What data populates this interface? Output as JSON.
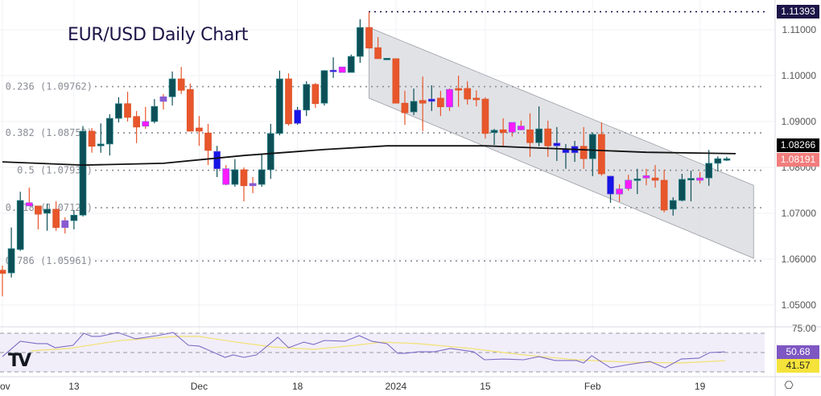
{
  "title": "EUR/USD Daily Chart",
  "chart_data": {
    "type": "candlestick",
    "title": "EUR/USD Daily Chart",
    "ylim": [
      1.0425,
      1.1165
    ],
    "price_ticks": [
      "1.11000",
      "1.10000",
      "1.09000",
      "1.08000",
      "1.07000",
      "1.06000",
      "1.05000"
    ],
    "price_tick_values": [
      1.11,
      1.1,
      1.09,
      1.08,
      1.07,
      1.06,
      1.05
    ],
    "time_labels": [
      {
        "index": 0,
        "label": "ov"
      },
      {
        "index": 8,
        "label": "13"
      },
      {
        "index": 22,
        "label": "Dec"
      },
      {
        "index": 33,
        "label": "18"
      },
      {
        "index": 44,
        "label": "2024"
      },
      {
        "index": 54,
        "label": "15"
      },
      {
        "index": 66,
        "label": "Feb"
      },
      {
        "index": 78,
        "label": "19"
      }
    ],
    "colors": {
      "up": "#0d4f57",
      "down": "#e8562c",
      "b": "#1515e6",
      "p": "#ff1aff",
      "v": "#8a5bd0",
      "sma": "#111111",
      "rsi": "#7e6bc4",
      "rsi_ma": "#f2e27a",
      "channel": "#d9dadf"
    },
    "candles": [
      [
        1.0576,
        1.0586,
        1.0519,
        1.0569,
        "d"
      ],
      [
        1.057,
        1.0669,
        1.056,
        1.0623,
        "u"
      ],
      [
        1.0621,
        1.0747,
        1.0618,
        1.0728,
        "u"
      ],
      [
        1.0723,
        1.0756,
        1.0716,
        1.0716,
        "p"
      ],
      [
        1.0716,
        1.0716,
        1.0665,
        1.0698,
        "d"
      ],
      [
        1.07,
        1.0721,
        1.0662,
        1.0709,
        "u"
      ],
      [
        1.0709,
        1.0726,
        1.0662,
        1.0669,
        "d"
      ],
      [
        1.0684,
        1.0691,
        1.0656,
        1.0669,
        "v"
      ],
      [
        1.0684,
        1.0707,
        1.0665,
        1.0696,
        "u"
      ],
      [
        1.0696,
        1.089,
        1.0693,
        1.0879,
        "u"
      ],
      [
        1.0879,
        1.0886,
        1.0832,
        1.0846,
        "d"
      ],
      [
        1.0847,
        1.0896,
        1.0832,
        1.0851,
        "u"
      ],
      [
        1.0851,
        1.0916,
        1.0826,
        1.0907,
        "u"
      ],
      [
        1.0907,
        1.0953,
        1.0898,
        1.0939,
        "u"
      ],
      [
        1.0939,
        1.0965,
        1.09,
        1.0909,
        "d"
      ],
      [
        1.0911,
        1.0923,
        1.0853,
        1.0888,
        "d"
      ],
      [
        1.09,
        1.0932,
        1.0884,
        1.089,
        "p"
      ],
      [
        1.09,
        1.0949,
        1.0896,
        1.0933,
        "u"
      ],
      [
        1.0954,
        1.096,
        1.0926,
        1.0944,
        "v"
      ],
      [
        1.0954,
        1.1009,
        1.0935,
        1.0993,
        "u"
      ],
      [
        1.0993,
        1.1019,
        1.096,
        1.0968,
        "d"
      ],
      [
        1.097,
        1.0983,
        1.0879,
        1.0879,
        "d"
      ],
      [
        1.0886,
        1.0912,
        1.0847,
        1.0879,
        "d"
      ],
      [
        1.0875,
        1.0895,
        1.0805,
        1.0837,
        "d"
      ],
      [
        1.0835,
        1.0847,
        1.0779,
        1.0797,
        "b"
      ],
      [
        1.0797,
        1.0805,
        1.0761,
        1.0763,
        "p"
      ],
      [
        1.0763,
        1.0818,
        1.0758,
        1.0795,
        "u"
      ],
      [
        1.0795,
        1.08,
        1.0726,
        1.076,
        "d"
      ],
      [
        1.0765,
        1.0779,
        1.0744,
        1.076,
        "v"
      ],
      [
        1.0763,
        1.0828,
        1.0758,
        1.0795,
        "u"
      ],
      [
        1.0795,
        1.0895,
        1.0775,
        1.0874,
        "u"
      ],
      [
        1.0874,
        1.1011,
        1.087,
        1.0993,
        "u"
      ],
      [
        1.0993,
        1.1005,
        1.0891,
        1.0895,
        "d"
      ],
      [
        1.0925,
        1.0932,
        1.0893,
        1.0896,
        "b"
      ],
      [
        1.0925,
        1.0988,
        1.0912,
        1.0981,
        "u"
      ],
      [
        1.0981,
        1.0984,
        1.093,
        1.0939,
        "d"
      ],
      [
        1.094,
        1.1012,
        1.0935,
        1.1011,
        "u"
      ],
      [
        1.1012,
        1.104,
        1.0995,
        1.1011,
        "b"
      ],
      [
        1.1019,
        1.1019,
        1.1007,
        1.1007,
        "p"
      ],
      [
        1.1007,
        1.1046,
        1.1007,
        1.1042,
        "u"
      ],
      [
        1.1042,
        1.1123,
        1.1028,
        1.1105,
        "u"
      ],
      [
        1.1105,
        1.1139,
        1.106,
        1.106,
        "d"
      ],
      [
        1.1061,
        1.1084,
        1.1037,
        1.1037,
        "d"
      ],
      [
        1.1037,
        1.1038,
        1.1037,
        1.1038,
        "u"
      ],
      [
        1.1037,
        1.1037,
        1.094,
        1.094,
        "d"
      ],
      [
        1.094,
        1.0967,
        1.0893,
        1.0919,
        "d"
      ],
      [
        1.0921,
        1.0972,
        1.0914,
        1.0944,
        "u"
      ],
      [
        1.0946,
        1.0998,
        1.0879,
        1.094,
        "d"
      ],
      [
        1.0949,
        1.0979,
        1.0923,
        1.0944,
        "b"
      ],
      [
        1.0951,
        1.0967,
        1.0912,
        1.0932,
        "d"
      ],
      [
        1.097,
        1.0972,
        1.0923,
        1.0932,
        "p"
      ],
      [
        1.0972,
        1.1,
        1.0932,
        1.097,
        "d"
      ],
      [
        1.0972,
        1.0988,
        1.0937,
        1.0949,
        "d"
      ],
      [
        1.0951,
        1.0968,
        1.0933,
        1.0949,
        "d"
      ],
      [
        1.0949,
        1.0953,
        1.0863,
        1.0874,
        "d"
      ],
      [
        1.0876,
        1.0884,
        1.0849,
        1.0881,
        "u"
      ],
      [
        1.0882,
        1.0907,
        1.0847,
        1.0876,
        "d"
      ],
      [
        1.0898,
        1.0898,
        1.0867,
        1.0877,
        "p"
      ],
      [
        1.089,
        1.0902,
        1.0881,
        1.0882,
        "p"
      ],
      [
        1.0882,
        1.0918,
        1.0823,
        1.0854,
        "d"
      ],
      [
        1.0854,
        1.0933,
        1.0846,
        1.0884,
        "u"
      ],
      [
        1.0884,
        1.0902,
        1.0823,
        1.0847,
        "d"
      ],
      [
        1.0853,
        1.0888,
        1.0814,
        1.0847,
        "b"
      ],
      [
        1.0839,
        1.0851,
        1.0797,
        1.0832,
        "b"
      ],
      [
        1.0846,
        1.0858,
        1.0812,
        1.0832,
        "b"
      ],
      [
        1.0846,
        1.0888,
        1.0797,
        1.0819,
        "d"
      ],
      [
        1.0819,
        1.0876,
        1.0781,
        1.0872,
        "u"
      ],
      [
        1.0872,
        1.0898,
        1.0782,
        1.0786,
        "d"
      ],
      [
        1.0781,
        1.0782,
        1.0723,
        1.0742,
        "b"
      ],
      [
        1.0753,
        1.0763,
        1.0725,
        1.0742,
        "p"
      ],
      [
        1.0772,
        1.0784,
        1.0749,
        1.0754,
        "p"
      ],
      [
        1.0772,
        1.0797,
        1.0742,
        1.0775,
        "u"
      ],
      [
        1.0782,
        1.0797,
        1.0761,
        1.0777,
        "p"
      ],
      [
        1.0777,
        1.0805,
        1.0756,
        1.0772,
        "d"
      ],
      [
        1.0772,
        1.0795,
        1.0702,
        1.0707,
        "d"
      ],
      [
        1.0709,
        1.0735,
        1.0695,
        1.0728,
        "u"
      ],
      [
        1.0728,
        1.0786,
        1.0726,
        1.0774,
        "u"
      ],
      [
        1.0775,
        1.0793,
        1.0726,
        1.0776,
        "u"
      ],
      [
        1.0777,
        1.079,
        1.0765,
        1.0772,
        "p"
      ],
      [
        1.0777,
        1.0838,
        1.076,
        1.0809,
        "u"
      ],
      [
        1.0809,
        1.0824,
        1.0791,
        1.0819,
        "u"
      ],
      [
        1.0819,
        1.0823,
        1.0814,
        1.0819,
        "u"
      ]
    ],
    "sma_200": [
      [
        0,
        1.0812
      ],
      [
        9,
        1.0805
      ],
      [
        18,
        1.0809
      ],
      [
        27,
        1.0826
      ],
      [
        36,
        1.0839
      ],
      [
        43,
        1.0847
      ],
      [
        54,
        1.0847
      ],
      [
        63,
        1.084
      ],
      [
        72,
        1.0833
      ],
      [
        82,
        1.083
      ]
    ],
    "channel": {
      "start_index": 41,
      "end_index": 84,
      "upper": [
        1.1105,
        1.0761
      ],
      "lower": [
        1.0951,
        1.0602
      ]
    },
    "fib_levels": [
      {
        "label": "0.236 (1.09762)",
        "value": 1.09762
      },
      {
        "label": "0.382 (1.08753)",
        "value": 1.08753
      },
      {
        "label": "0.5 (1.07938)",
        "value": 1.07938
      },
      {
        "label": "0.618 (1.07122)",
        "value": 1.07122
      },
      {
        "label": "0.786 (1.05961)",
        "value": 1.05961
      }
    ],
    "high_line": {
      "value": 1.11393,
      "label": "1.11393"
    },
    "last_labels": {
      "sma": "1.08266",
      "price": "1.08191"
    },
    "rsi": {
      "axis_label": "75.00",
      "levels": [
        70,
        50,
        30
      ],
      "value_label": "50.68",
      "ma_label": "41.57",
      "series": [
        [
          0,
          45.8
        ],
        [
          2,
          61.7
        ],
        [
          3.9,
          59.2
        ],
        [
          5,
          59.2
        ],
        [
          5.9,
          55
        ],
        [
          7.9,
          57.5
        ],
        [
          9.1,
          70
        ],
        [
          10,
          66.7
        ],
        [
          10.9,
          66.7
        ],
        [
          12.9,
          70.8
        ],
        [
          14.9,
          64.2
        ],
        [
          17.3,
          67.5
        ],
        [
          19.1,
          70.8
        ],
        [
          20.8,
          57.5
        ],
        [
          22,
          56.7
        ],
        [
          24.9,
          45
        ],
        [
          25.8,
          47.5
        ],
        [
          27,
          45
        ],
        [
          28.4,
          47.5
        ],
        [
          30.8,
          65.8
        ],
        [
          32,
          55
        ],
        [
          33.7,
          60.8
        ],
        [
          34.8,
          58.3
        ],
        [
          36,
          62.5
        ],
        [
          38.3,
          61.7
        ],
        [
          39.9,
          67.5
        ],
        [
          41.3,
          61.7
        ],
        [
          43,
          59.2
        ],
        [
          44.2,
          49.2
        ],
        [
          45.1,
          49.2
        ],
        [
          46.5,
          50.8
        ],
        [
          48.3,
          50.8
        ],
        [
          50.1,
          54.2
        ],
        [
          52.7,
          50.8
        ],
        [
          53.9,
          42.5
        ],
        [
          56,
          43.3
        ],
        [
          58.3,
          42.5
        ],
        [
          60,
          45.8
        ],
        [
          61.8,
          41.7
        ],
        [
          64.2,
          41.7
        ],
        [
          65,
          39.2
        ],
        [
          65.9,
          46.7
        ],
        [
          68,
          34.2
        ],
        [
          70,
          37.5
        ],
        [
          72.4,
          40.8
        ],
        [
          74.1,
          34.2
        ],
        [
          75.9,
          43.3
        ],
        [
          77.9,
          44.2
        ],
        [
          79.1,
          50
        ],
        [
          80.8,
          50.68
        ]
      ],
      "ma_series": [
        [
          3.2,
          51.7
        ],
        [
          7.4,
          54.2
        ],
        [
          13.2,
          62.5
        ],
        [
          19.6,
          66.7
        ],
        [
          22,
          66.7
        ],
        [
          26.1,
          60.8
        ],
        [
          30.2,
          55.8
        ],
        [
          34.8,
          53.3
        ],
        [
          39.5,
          57.5
        ],
        [
          42.5,
          60.8
        ],
        [
          46.5,
          59.2
        ],
        [
          52.4,
          54.2
        ],
        [
          58.3,
          47.5
        ],
        [
          64.2,
          42.5
        ],
        [
          70,
          40
        ],
        [
          75.9,
          39.2
        ],
        [
          80.8,
          41.57
        ]
      ]
    }
  }
}
